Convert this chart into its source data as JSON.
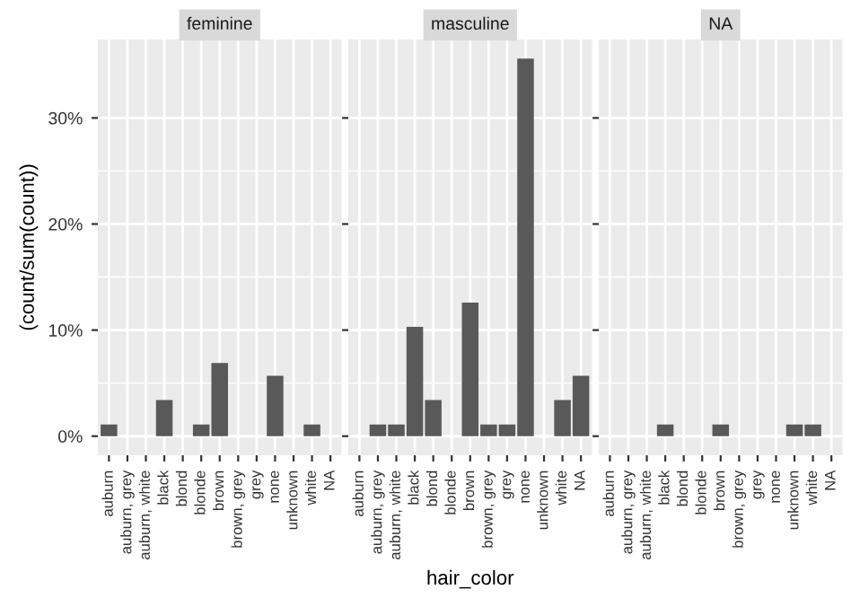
{
  "chart_data": [
    {
      "type": "bar",
      "title": "feminine",
      "ylabel": "(count/sum(count))",
      "categories": [
        "auburn",
        "auburn, grey",
        "auburn, white",
        "black",
        "blond",
        "blonde",
        "brown",
        "brown, grey",
        "grey",
        "none",
        "unknown",
        "white",
        "NA"
      ],
      "values": [
        1.1,
        null,
        null,
        3.4,
        null,
        1.1,
        6.9,
        null,
        null,
        5.7,
        null,
        1.1,
        null
      ],
      "color": "#595959",
      "ylim": [
        -1.8,
        37.4
      ],
      "yticks": [
        {
          "value": 0,
          "label": "0%"
        },
        {
          "value": 10,
          "label": "10%"
        },
        {
          "value": 20,
          "label": "20%"
        },
        {
          "value": 30,
          "label": "30%"
        }
      ],
      "grid": true
    },
    {
      "type": "bar",
      "title": "masculine",
      "xlabel": "hair_color",
      "categories": [
        "auburn",
        "auburn, grey",
        "auburn, white",
        "black",
        "blond",
        "blonde",
        "brown",
        "brown, grey",
        "grey",
        "none",
        "unknown",
        "white",
        "NA"
      ],
      "values": [
        null,
        1.1,
        1.1,
        10.3,
        3.4,
        null,
        12.6,
        1.1,
        1.1,
        35.6,
        null,
        3.4,
        5.7
      ],
      "color": "#595959",
      "ylim": [
        -1.8,
        37.4
      ],
      "yticks": [
        {
          "value": 0,
          "label": null
        },
        {
          "value": 10,
          "label": null
        },
        {
          "value": 20,
          "label": null
        },
        {
          "value": 30,
          "label": null
        }
      ],
      "grid": true,
      "tick_labels": "x"
    },
    {
      "type": "bar",
      "title": "NA",
      "categories": [
        "auburn",
        "auburn, grey",
        "auburn, white",
        "black",
        "blond",
        "blonde",
        "brown",
        "brown, grey",
        "grey",
        "none",
        "unknown",
        "white",
        "NA"
      ],
      "values": [
        null,
        null,
        null,
        1.1,
        null,
        null,
        1.1,
        null,
        null,
        null,
        1.1,
        1.1,
        null
      ],
      "color": "#595959",
      "ylim": [
        -1.8,
        37.4
      ],
      "yticks": [
        {
          "value": 0,
          "label": null
        },
        {
          "value": 10,
          "label": null
        },
        {
          "value": 20,
          "label": null
        },
        {
          "value": 30,
          "label": null
        }
      ],
      "grid": true,
      "tick_labels": "x"
    }
  ]
}
